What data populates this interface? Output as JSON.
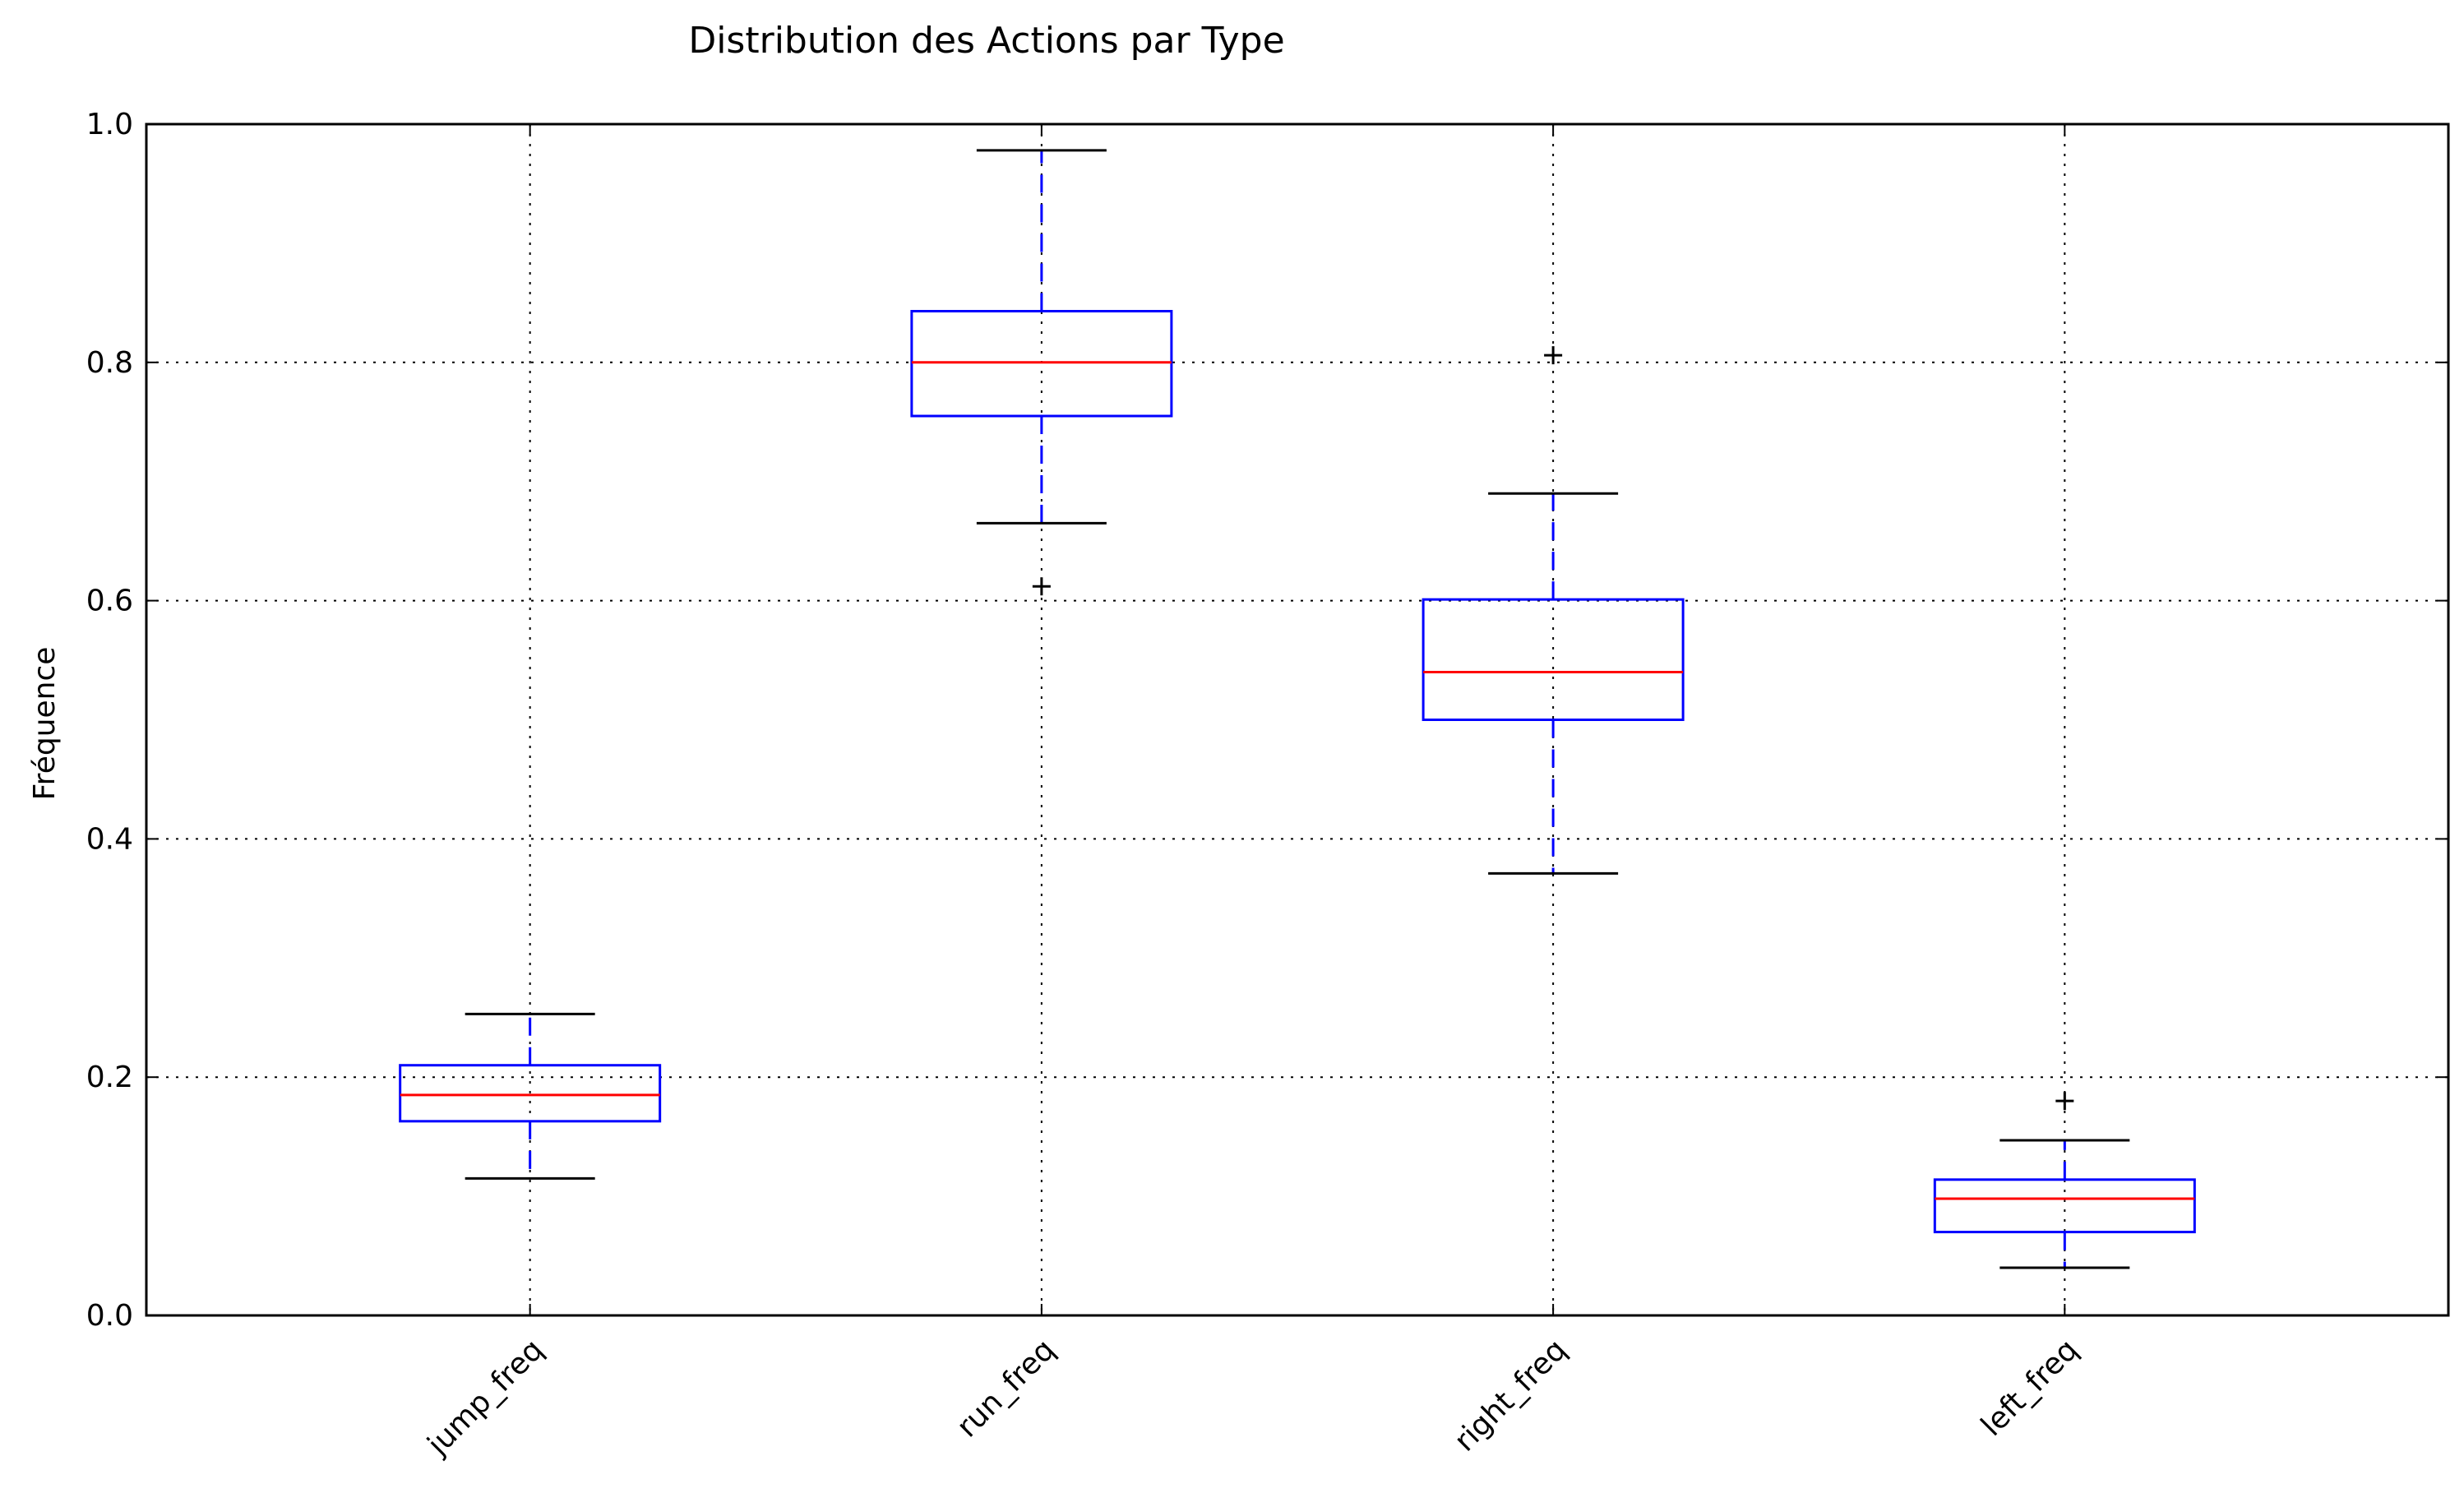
{
  "chart_data": {
    "type": "boxplot",
    "title": "Distribution des Actions par Type",
    "xlabel": "",
    "ylabel": "Fréquence",
    "ylim": [
      0.0,
      1.0
    ],
    "yticks": [
      "0.0",
      "0.2",
      "0.4",
      "0.6",
      "0.8",
      "1.0"
    ],
    "grid": true,
    "categories": [
      "jump_freq",
      "run_freq",
      "right_freq",
      "left_freq"
    ],
    "boxes": [
      {
        "name": "jump_freq",
        "whisker_low": 0.115,
        "q1": 0.163,
        "median": 0.185,
        "q3": 0.21,
        "whisker_high": 0.253,
        "outliers": []
      },
      {
        "name": "run_freq",
        "whisker_low": 0.665,
        "q1": 0.755,
        "median": 0.8,
        "q3": 0.843,
        "whisker_high": 0.978,
        "outliers": [
          0.612
        ]
      },
      {
        "name": "right_freq",
        "whisker_low": 0.371,
        "q1": 0.5,
        "median": 0.54,
        "q3": 0.601,
        "whisker_high": 0.69,
        "outliers": [
          0.806
        ]
      },
      {
        "name": "left_freq",
        "whisker_low": 0.04,
        "q1": 0.07,
        "median": 0.098,
        "q3": 0.114,
        "whisker_high": 0.147,
        "outliers": [
          0.18
        ]
      }
    ],
    "colors": {
      "box": "#0000ff",
      "median": "#ff0000",
      "whisker": "#0000ff",
      "cap": "#000000",
      "outlier": "#000000",
      "grid": "#000000",
      "axis": "#000000"
    }
  }
}
